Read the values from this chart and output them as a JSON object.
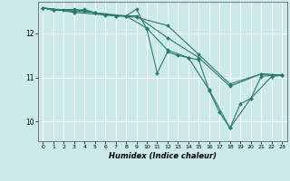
{
  "xlabel": "Humidex (Indice chaleur)",
  "bg_color": "#cceaea",
  "line_color": "#2a7a6a",
  "marker_color": "#2a7a6a",
  "grid_color": "#ffffff",
  "xlim": [
    -0.5,
    23.5
  ],
  "ylim": [
    9.55,
    12.72
  ],
  "yticks": [
    10,
    11,
    12
  ],
  "xticks": [
    0,
    1,
    2,
    3,
    4,
    5,
    6,
    7,
    8,
    9,
    10,
    11,
    12,
    13,
    14,
    15,
    16,
    17,
    18,
    19,
    20,
    21,
    22,
    23
  ],
  "series1": [
    [
      0,
      12.58
    ],
    [
      1,
      12.53
    ],
    [
      2,
      12.53
    ],
    [
      3,
      12.5
    ],
    [
      4,
      12.55
    ],
    [
      5,
      12.47
    ],
    [
      6,
      12.43
    ],
    [
      7,
      12.4
    ],
    [
      8,
      12.4
    ],
    [
      9,
      12.55
    ],
    [
      10,
      12.1
    ],
    [
      11,
      11.1
    ],
    [
      12,
      11.58
    ],
    [
      13,
      11.5
    ],
    [
      14,
      11.45
    ],
    [
      15,
      11.4
    ],
    [
      16,
      10.7
    ],
    [
      17,
      10.2
    ],
    [
      18,
      9.85
    ],
    [
      19,
      10.4
    ],
    [
      20,
      10.52
    ],
    [
      21,
      11.02
    ],
    [
      22,
      11.05
    ],
    [
      23,
      11.05
    ]
  ],
  "series2": [
    [
      0,
      12.58
    ],
    [
      1,
      12.53
    ],
    [
      3,
      12.55
    ],
    [
      4,
      12.52
    ],
    [
      5,
      12.47
    ],
    [
      6,
      12.43
    ],
    [
      7,
      12.4
    ],
    [
      9,
      12.4
    ],
    [
      12,
      11.9
    ],
    [
      15,
      11.45
    ],
    [
      18,
      10.8
    ],
    [
      21,
      11.08
    ],
    [
      23,
      11.05
    ]
  ],
  "series3": [
    [
      0,
      12.58
    ],
    [
      3,
      12.48
    ],
    [
      6,
      12.42
    ],
    [
      9,
      12.37
    ],
    [
      12,
      12.18
    ],
    [
      15,
      11.52
    ],
    [
      18,
      10.85
    ],
    [
      21,
      11.08
    ],
    [
      23,
      11.05
    ]
  ],
  "series4": [
    [
      0,
      12.58
    ],
    [
      5,
      12.47
    ],
    [
      8,
      12.4
    ],
    [
      10,
      12.12
    ],
    [
      12,
      11.62
    ],
    [
      14,
      11.45
    ],
    [
      16,
      10.72
    ],
    [
      18,
      9.85
    ],
    [
      20,
      10.52
    ],
    [
      22,
      11.02
    ],
    [
      23,
      11.05
    ]
  ]
}
